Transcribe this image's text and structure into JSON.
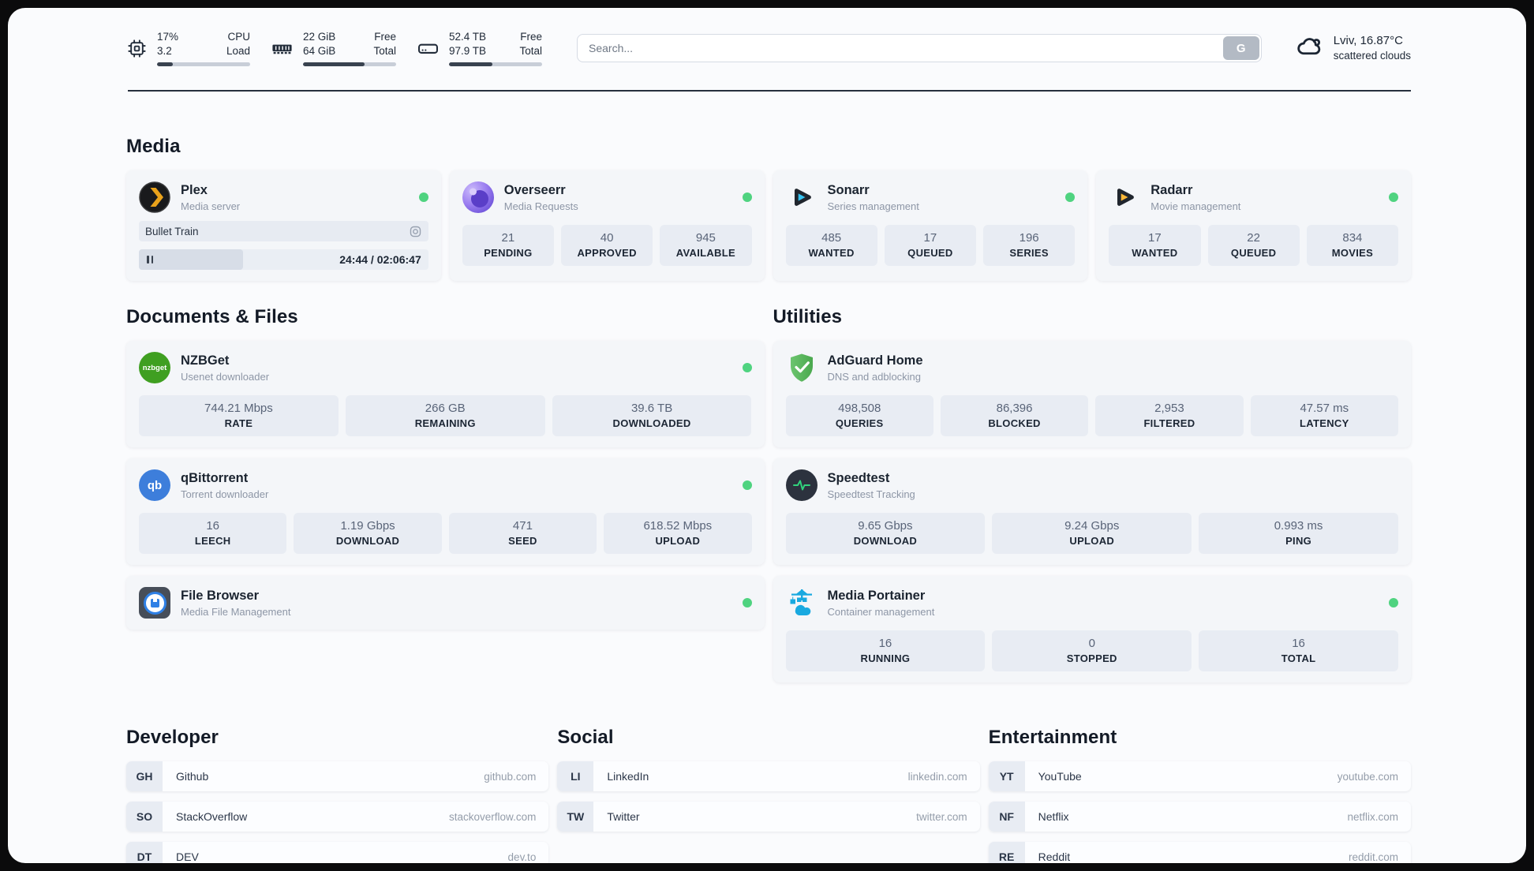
{
  "topbar": {
    "stats": [
      {
        "values": [
          "17%",
          "3.2"
        ],
        "labels": [
          "CPU",
          "Load"
        ],
        "progress": 17
      },
      {
        "values": [
          "22 GiB",
          "64 GiB"
        ],
        "labels": [
          "Free",
          "Total"
        ],
        "progress": 66
      },
      {
        "values": [
          "52.4 TB",
          "97.9 TB"
        ],
        "labels": [
          "Free",
          "Total"
        ],
        "progress": 47
      }
    ],
    "search": {
      "placeholder": "Search...",
      "button_label": "G"
    },
    "weather": {
      "location": "Lviv, 16.87°C",
      "condition": "scattered clouds"
    }
  },
  "sections": {
    "media": "Media",
    "documents": "Documents & Files",
    "utilities": "Utilities",
    "developer": "Developer",
    "social": "Social",
    "entertainment": "Entertainment"
  },
  "apps": {
    "plex": {
      "name": "Plex",
      "desc": "Media server",
      "now_playing": "Bullet Train",
      "time": "24:44 / 02:06:47"
    },
    "overseerr": {
      "name": "Overseerr",
      "desc": "Media Requests",
      "stats": [
        {
          "value": "21",
          "label": "PENDING"
        },
        {
          "value": "40",
          "label": "APPROVED"
        },
        {
          "value": "945",
          "label": "AVAILABLE"
        }
      ]
    },
    "sonarr": {
      "name": "Sonarr",
      "desc": "Series management",
      "stats": [
        {
          "value": "485",
          "label": "WANTED"
        },
        {
          "value": "17",
          "label": "QUEUED"
        },
        {
          "value": "196",
          "label": "SERIES"
        }
      ]
    },
    "radarr": {
      "name": "Radarr",
      "desc": "Movie management",
      "stats": [
        {
          "value": "17",
          "label": "WANTED"
        },
        {
          "value": "22",
          "label": "QUEUED"
        },
        {
          "value": "834",
          "label": "MOVIES"
        }
      ]
    },
    "nzbget": {
      "name": "NZBGet",
      "desc": "Usenet downloader",
      "icon_text": "nzbget",
      "stats": [
        {
          "value": "744.21 Mbps",
          "label": "RATE"
        },
        {
          "value": "266 GB",
          "label": "REMAINING"
        },
        {
          "value": "39.6 TB",
          "label": "DOWNLOADED"
        }
      ]
    },
    "qbittorrent": {
      "name": "qBittorrent",
      "desc": "Torrent downloader",
      "icon_text": "qb",
      "stats": [
        {
          "value": "16",
          "label": "LEECH"
        },
        {
          "value": "1.19 Gbps",
          "label": "DOWNLOAD"
        },
        {
          "value": "471",
          "label": "SEED"
        },
        {
          "value": "618.52 Mbps",
          "label": "UPLOAD"
        }
      ]
    },
    "filebrowser": {
      "name": "File Browser",
      "desc": "Media File Management"
    },
    "adguard": {
      "name": "AdGuard Home",
      "desc": "DNS and adblocking",
      "stats": [
        {
          "value": "498,508",
          "label": "QUERIES"
        },
        {
          "value": "86,396",
          "label": "BLOCKED"
        },
        {
          "value": "2,953",
          "label": "FILTERED"
        },
        {
          "value": "47.57 ms",
          "label": "LATENCY"
        }
      ]
    },
    "speedtest": {
      "name": "Speedtest",
      "desc": "Speedtest Tracking",
      "stats": [
        {
          "value": "9.65 Gbps",
          "label": "DOWNLOAD"
        },
        {
          "value": "9.24 Gbps",
          "label": "UPLOAD"
        },
        {
          "value": "0.993 ms",
          "label": "PING"
        }
      ]
    },
    "portainer": {
      "name": "Media Portainer",
      "desc": "Container management",
      "stats": [
        {
          "value": "16",
          "label": "RUNNING"
        },
        {
          "value": "0",
          "label": "STOPPED"
        },
        {
          "value": "16",
          "label": "TOTAL"
        }
      ]
    }
  },
  "links": {
    "developer": [
      {
        "abbr": "GH",
        "name": "Github",
        "url": "github.com"
      },
      {
        "abbr": "SO",
        "name": "StackOverflow",
        "url": "stackoverflow.com"
      },
      {
        "abbr": "DT",
        "name": "DEV",
        "url": "dev.to"
      }
    ],
    "social": [
      {
        "abbr": "LI",
        "name": "LinkedIn",
        "url": "linkedin.com"
      },
      {
        "abbr": "TW",
        "name": "Twitter",
        "url": "twitter.com"
      }
    ],
    "entertainment": [
      {
        "abbr": "YT",
        "name": "YouTube",
        "url": "youtube.com"
      },
      {
        "abbr": "NF",
        "name": "Netflix",
        "url": "netflix.com"
      },
      {
        "abbr": "RE",
        "name": "Reddit",
        "url": "reddit.com"
      }
    ]
  },
  "colors": {
    "status_online": "#4fd380",
    "accent_green": "#31d27c"
  }
}
